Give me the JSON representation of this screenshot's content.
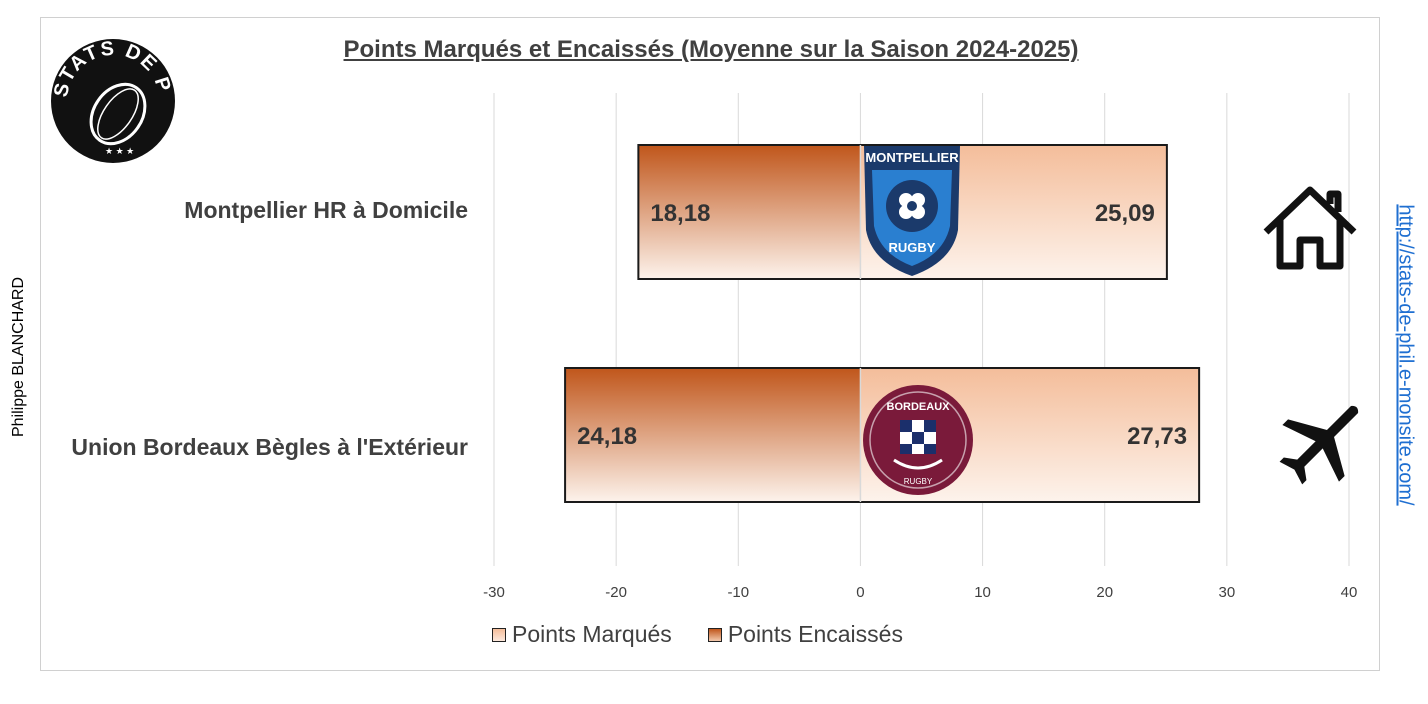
{
  "page": {
    "author": "Philippe BLANCHARD",
    "url": "http://stats-de-phil.e-monsite.com/",
    "logo_text": "STATS DE PHIL"
  },
  "colors": {
    "marques_light": "#fde9dd",
    "marques_dark": "#f4bd9a",
    "encaisses_dark": "#c0561b",
    "encaisses_light": "#f2c9ad",
    "grid": "#d9d9d9",
    "text": "#404040",
    "link": "#1f6fd1"
  },
  "chart_data": {
    "type": "bar",
    "orientation": "horizontal",
    "stacked": true,
    "title": "Points Marqués et Encaissés (Moyenne sur la Saison 2024-2025)",
    "categories": [
      "Montpellier HR à Domicile",
      "Union Bordeaux Bègles à l'Extérieur"
    ],
    "category_icons": [
      "house-icon",
      "airplane-icon"
    ],
    "team_logos": [
      "montpellier-logo",
      "bordeaux-begles-logo"
    ],
    "series": [
      {
        "name": "Points Marqués",
        "values": [
          25.09,
          27.73
        ],
        "labels": [
          "25,09",
          "27,73"
        ]
      },
      {
        "name": "Points Encaissés",
        "values": [
          -18.18,
          -24.18
        ],
        "labels": [
          "18,18",
          "24,18"
        ]
      }
    ],
    "xlim": [
      -30,
      40
    ],
    "xticks": [
      -30,
      -20,
      -10,
      0,
      10,
      20,
      30,
      40
    ],
    "xtick_labels": [
      "-30",
      "-20",
      "-10",
      "0",
      "10",
      "20",
      "30",
      "40"
    ],
    "grid": true,
    "legend_position": "bottom"
  }
}
